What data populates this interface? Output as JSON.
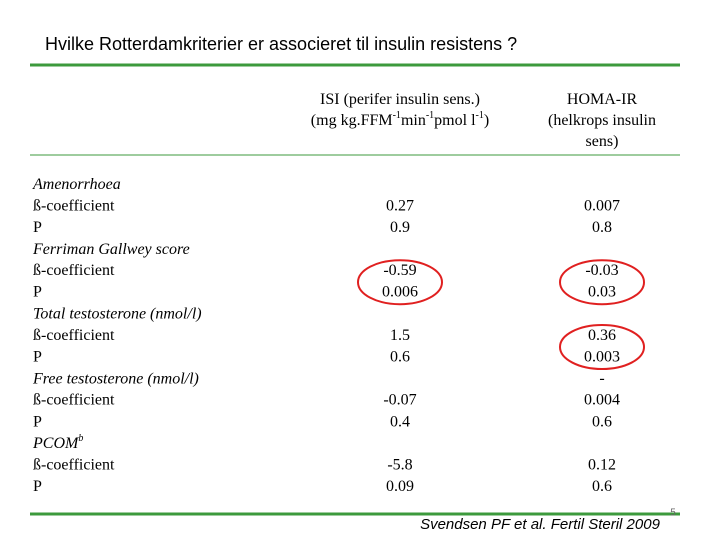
{
  "title": "Hvilke Rotterdamkriterier er associeret til insulin resistens ?",
  "headers": [
    {
      "lines": [
        [
          "ISI  (perifer insulin sens.)"
        ],
        [
          "(mg kg.FFM",
          "-1",
          "min",
          "-1",
          "pmol l",
          "-1",
          ")"
        ]
      ]
    },
    {
      "lines": [
        [
          "HOMA-IR"
        ],
        [
          "(helkrops insulin"
        ],
        [
          "sens)"
        ]
      ]
    }
  ],
  "groups": [
    {
      "name": "Amenorrhoea",
      "rows": [
        "ß-coefficient",
        "P"
      ],
      "isi": [
        "0.27",
        "0.9"
      ],
      "homa": [
        "0.007",
        "0.8"
      ],
      "isi_circled": false,
      "homa_circled": false
    },
    {
      "name": "Ferriman Gallwey score",
      "rows": [
        "ß-coefficient",
        "P"
      ],
      "isi": [
        "-0.59",
        "0.006"
      ],
      "homa": [
        "-0.03",
        "0.03"
      ],
      "isi_circled": true,
      "homa_circled": true
    },
    {
      "name": "Total testosterone (nmol/l)",
      "rows": [
        "ß-coefficient",
        "P"
      ],
      "isi": [
        "1.5",
        "0.6"
      ],
      "homa": [
        "0.36",
        "0.003"
      ],
      "isi_circled": false,
      "homa_circled": true
    },
    {
      "name": "Free testosterone (nmol/l)",
      "rows": [
        "ß-coefficient",
        "P"
      ],
      "isi": [
        "-0.07",
        "0.4"
      ],
      "homa": [
        "-",
        "0.004",
        "0.6"
      ],
      "isi_circled": false,
      "homa_circled": false
    },
    {
      "name": "PCOM",
      "name_sup": "b",
      "rows": [
        "ß-coefficient",
        "P"
      ],
      "isi": [
        "-5.8",
        "0.09"
      ],
      "homa": [
        "0.12",
        "0.6"
      ],
      "isi_circled": false,
      "homa_circled": false
    }
  ],
  "citation": "Svendsen PF et al. Fertil Steril 2009",
  "page_number": "5"
}
